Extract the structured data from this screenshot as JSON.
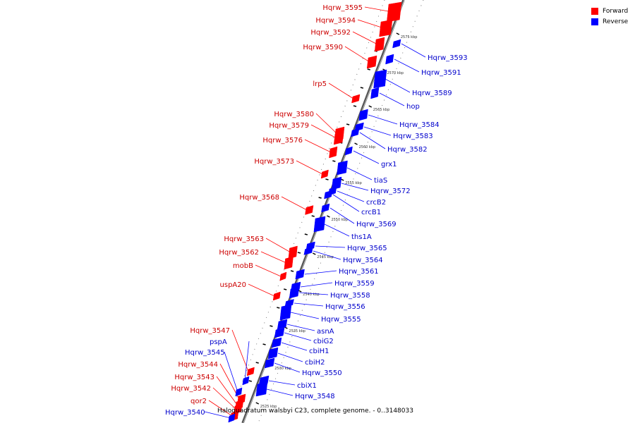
{
  "colors": {
    "forward": "#ff0000",
    "reverse": "#0000ff",
    "axis": "#888888"
  },
  "legend": [
    {
      "label": "Forward",
      "color": "#ff0000"
    },
    {
      "label": "Reverse",
      "color": "#0000ff"
    }
  ],
  "caption": "Haloquadratum walsbyi C23, complete genome. - 0..3148033",
  "ticks": [
    "2525 kbp",
    "2530 kbp",
    "2535 kbp",
    "2540 kbp",
    "2545 kbp",
    "2550 kbp",
    "2555 kbp",
    "2560 kbp",
    "2565 kbp",
    "2570 kbp",
    "2575 kbp"
  ],
  "genes_forward": [
    "Hqrw_3595",
    "Hqrw_3594",
    "Hqrw_3592",
    "Hqrw_3590",
    "lrp5",
    "Hqrw_3580",
    "Hqrw_3579",
    "Hqrw_3576",
    "Hqrw_3573",
    "Hqrw_3568",
    "Hqrw_3563",
    "Hqrw_3562",
    "mobB",
    "uspA20",
    "Hqrw_3547",
    "Hqrw_3544",
    "Hqrw_3543",
    "Hqrw_3542",
    "qor2"
  ],
  "genes_reverse": [
    "Hqrw_3593",
    "Hqrw_3591",
    "Hqrw_3589",
    "hop",
    "Hqrw_3584",
    "Hqrw_3583",
    "Hqrw_3582",
    "grx1",
    "tiaS",
    "Hqrw_3572",
    "crcB2",
    "crcB1",
    "Hqrw_3569",
    "ths1A",
    "Hqrw_3565",
    "Hqrw_3564",
    "Hqrw_3561",
    "Hqrw_3559",
    "Hqrw_3558",
    "Hqrw_3556",
    "Hqrw_3555",
    "asnA",
    "cbiG2",
    "cbiH1",
    "cbiH2",
    "Hqrw_3550",
    "cbiX1",
    "Hqrw_3548",
    "pspA",
    "Hqrw_3545",
    "Hqrw_3540"
  ]
}
